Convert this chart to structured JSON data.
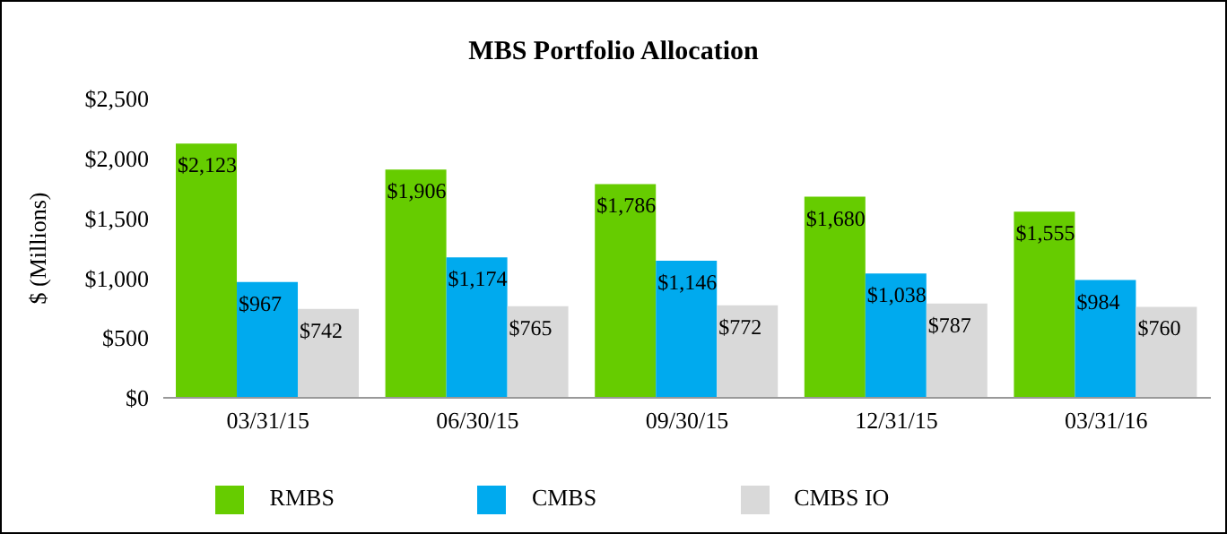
{
  "chart_data": {
    "type": "bar",
    "title": "MBS Portfolio Allocation",
    "ylabel": "$ (Millions)",
    "categories": [
      "03/31/15",
      "06/30/15",
      "09/30/15",
      "12/31/15",
      "03/31/16"
    ],
    "series": [
      {
        "name": "RMBS",
        "color": "#66cc00",
        "values": [
          2123,
          1906,
          1786,
          1680,
          1555
        ],
        "value_labels": [
          "$2,123",
          "$1,906",
          "$1,786",
          "$1,680",
          "$1,555"
        ]
      },
      {
        "name": "CMBS",
        "color": "#00aaee",
        "values": [
          967,
          1174,
          1146,
          1038,
          984
        ],
        "value_labels": [
          "$967",
          "$1,174",
          "$1,146",
          "$1,038",
          "$984"
        ]
      },
      {
        "name": "CMBS IO",
        "color": "#d9d9d9",
        "values": [
          742,
          765,
          772,
          787,
          760
        ],
        "value_labels": [
          "$742",
          "$765",
          "$772",
          "$787",
          "$760"
        ]
      }
    ],
    "ylim": [
      0,
      2500
    ],
    "yticks": [
      {
        "value": 0,
        "label": "$0"
      },
      {
        "value": 500,
        "label": "$500"
      },
      {
        "value": 1000,
        "label": "$1,000"
      },
      {
        "value": 1500,
        "label": "$1,500"
      },
      {
        "value": 2000,
        "label": "$2,000"
      },
      {
        "value": 2500,
        "label": "$2,500"
      }
    ],
    "grid": false,
    "legend": "bottom"
  }
}
